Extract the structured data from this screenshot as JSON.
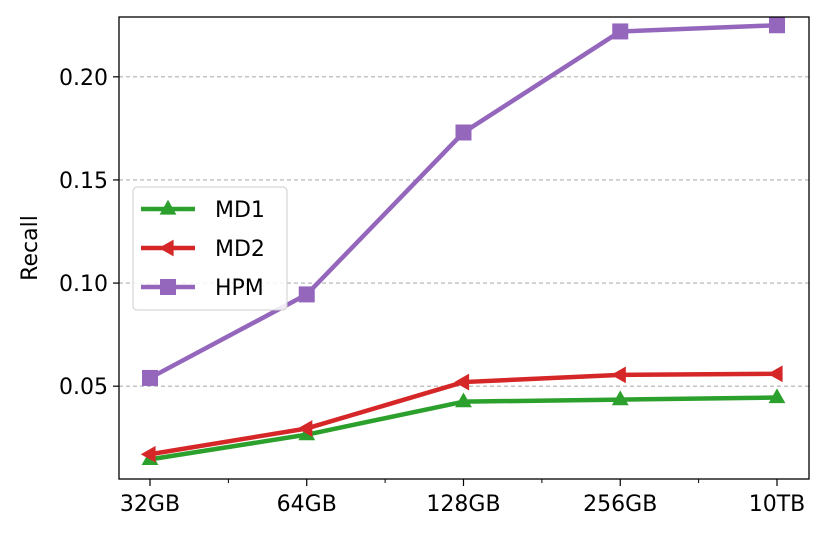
{
  "chart_data": {
    "type": "line",
    "categories": [
      "32GB",
      "64GB",
      "128GB",
      "256GB",
      "10TB"
    ],
    "minor_ticks_between_categories": true,
    "ylabel": "Recall",
    "xlabel": "",
    "ylim": [
      0.005,
      0.229
    ],
    "yticks": [
      0.05,
      0.1,
      0.15,
      0.2
    ],
    "ytick_labels": [
      "0.05",
      "0.10",
      "0.15",
      "0.20"
    ],
    "grid": "horizontal dashed",
    "legend_position": "center-left",
    "series": [
      {
        "name": "MD1",
        "color": "#2ca02c",
        "marker": "triangle-up",
        "values": [
          0.0145,
          0.0265,
          0.0425,
          0.0435,
          0.0445
        ]
      },
      {
        "name": "MD2",
        "color": "#d62728",
        "marker": "triangle-left",
        "values": [
          0.017,
          0.0295,
          0.052,
          0.0555,
          0.056
        ]
      },
      {
        "name": "HPM",
        "color": "#9467bd",
        "marker": "square",
        "values": [
          0.054,
          0.0945,
          0.173,
          0.222,
          0.225
        ]
      }
    ]
  }
}
